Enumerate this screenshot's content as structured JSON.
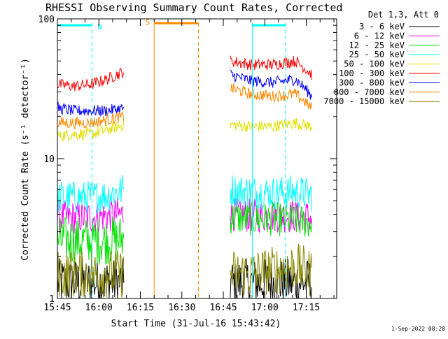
{
  "chart_data": {
    "type": "line",
    "title": "RHESSI Observing Summary Count Rates, Corrected",
    "xlabel": "Start Time (31-Jul-16 15:43:42)",
    "ylabel": "Corrected Count Rate (s⁻¹ detector⁻¹)",
    "yscale": "log",
    "ylim": [
      1,
      100
    ],
    "xlim_minutes_from_1545": [
      0,
      101
    ],
    "x_ticks": [
      {
        "label": "15:45",
        "minutes": 0
      },
      {
        "label": "16:00",
        "minutes": 15
      },
      {
        "label": "16:15",
        "minutes": 30
      },
      {
        "label": "16:30",
        "minutes": 45
      },
      {
        "label": "16:45",
        "minutes": 60
      },
      {
        "label": "17:00",
        "minutes": 75
      },
      {
        "label": "17:15",
        "minutes": 90
      }
    ],
    "y_ticks": [
      {
        "label": "1",
        "value": 1
      },
      {
        "label": "10",
        "value": 10
      },
      {
        "label": "100",
        "value": 100
      }
    ],
    "legend_header": "Det 1,3, Att 0",
    "legend_position": "top-right",
    "gaps_minutes": [
      [
        24.5,
        62.5
      ]
    ],
    "series": [
      {
        "name": "3 - 6 keV",
        "color": "#000000",
        "segments": [
          {
            "x": [
              0,
              6,
              12,
              18,
              24
            ],
            "y": [
              1.3,
              1.3,
              1.3,
              1.3,
              1.3
            ]
          },
          {
            "x": [
              62.5,
              70,
              78,
              86,
              92
            ],
            "y": [
              1.3,
              1.3,
              1.3,
              1.3,
              1.3
            ]
          }
        ]
      },
      {
        "name": "6 - 12 keV",
        "color": "#ff00ff",
        "segments": [
          {
            "x": [
              0,
              6,
              12,
              18,
              24
            ],
            "y": [
              3.8,
              3.8,
              3.8,
              3.9,
              4.0
            ]
          },
          {
            "x": [
              62.5,
              70,
              78,
              86,
              92
            ],
            "y": [
              4.0,
              3.9,
              3.9,
              3.9,
              3.8
            ]
          }
        ]
      },
      {
        "name": "12 - 25 keV",
        "color": "#00e000",
        "segments": [
          {
            "x": [
              0,
              6,
              12,
              18,
              24
            ],
            "y": [
              2.6,
              2.6,
              2.6,
              2.6,
              2.7
            ]
          },
          {
            "x": [
              62.5,
              70,
              78,
              86,
              92
            ],
            "y": [
              3.8,
              3.7,
              3.7,
              3.6,
              3.5
            ]
          }
        ]
      },
      {
        "name": "25 - 50 keV",
        "color": "#00ffff",
        "segments": [
          {
            "x": [
              0,
              6,
              12,
              18,
              24
            ],
            "y": [
              5.3,
              5.3,
              5.3,
              5.5,
              6.0
            ]
          },
          {
            "x": [
              62.5,
              70,
              78,
              86,
              92
            ],
            "y": [
              6.0,
              5.8,
              5.7,
              5.8,
              5.5
            ]
          }
        ]
      },
      {
        "name": "50 - 100 keV",
        "color": "#e0e000",
        "segments": [
          {
            "x": [
              0,
              6,
              12,
              18,
              24
            ],
            "y": [
              14.5,
              15.0,
              15.0,
              16.0,
              17.5
            ]
          },
          {
            "x": [
              62.5,
              70,
              78,
              86,
              92
            ],
            "y": [
              17.5,
              17.0,
              17.0,
              18.0,
              17.0
            ]
          }
        ]
      },
      {
        "name": "100 - 300 keV",
        "color": "#ff0000",
        "segments": [
          {
            "x": [
              0,
              6,
              12,
              18,
              24
            ],
            "y": [
              34,
              33,
              34,
              37,
              42
            ]
          },
          {
            "x": [
              62.5,
              70,
              78,
              86,
              92
            ],
            "y": [
              50,
              47,
              47,
              50,
              40
            ]
          }
        ]
      },
      {
        "name": "300 - 800 keV",
        "color": "#0000ff",
        "segments": [
          {
            "x": [
              0,
              6,
              12,
              18,
              24
            ],
            "y": [
              23,
              22,
              22,
              22,
              23
            ]
          },
          {
            "x": [
              62.5,
              70,
              78,
              86,
              92
            ],
            "y": [
              40,
              36,
              35,
              37,
              28
            ]
          }
        ]
      },
      {
        "name": "800 - 7000 keV",
        "color": "#ff8800",
        "segments": [
          {
            "x": [
              0,
              6,
              12,
              18,
              24
            ],
            "y": [
              18,
              18,
              18,
              19,
              20
            ]
          },
          {
            "x": [
              62.5,
              70,
              78,
              86,
              92
            ],
            "y": [
              32,
              29,
              28,
              29,
              23
            ]
          }
        ]
      },
      {
        "name": "7000 - 15000 keV",
        "color": "#888800",
        "segments": [
          {
            "x": [
              0,
              6,
              12,
              18,
              24
            ],
            "y": [
              1.5,
              1.5,
              1.5,
              1.5,
              1.5
            ]
          },
          {
            "x": [
              62.5,
              70,
              78,
              86,
              92
            ],
            "y": [
              1.5,
              1.5,
              1.6,
              1.7,
              1.5
            ]
          }
        ]
      }
    ],
    "annotations": [
      {
        "type": "flag-bar",
        "label": "N",
        "color": "#00ffff",
        "x_start_minutes": 0,
        "x_end_minutes": 12.5,
        "y_value": 90
      },
      {
        "type": "flag-bar",
        "label": "S",
        "color": "#ff8800",
        "x_start_minutes": 35,
        "x_end_minutes": 51,
        "y_value": 93
      },
      {
        "type": "flag-bar",
        "label": "",
        "color": "#00ffff",
        "x_start_minutes": 70.5,
        "x_end_minutes": 82.5,
        "y_value": 90
      }
    ],
    "vertical_markers": [
      {
        "minutes": 0,
        "color": "#00ffff",
        "style": "solid"
      },
      {
        "minutes": 12.5,
        "color": "#00ffff",
        "style": "dashed"
      },
      {
        "minutes": 35,
        "color": "#ff8800",
        "style": "solid"
      },
      {
        "minutes": 51,
        "color": "#ff8800",
        "style": "dashed"
      },
      {
        "minutes": 70.5,
        "color": "#00ffff",
        "style": "solid"
      },
      {
        "minutes": 82.5,
        "color": "#00ffff",
        "style": "dashed"
      }
    ],
    "footer_timestamp": "1-Sep-2022 08:28"
  }
}
